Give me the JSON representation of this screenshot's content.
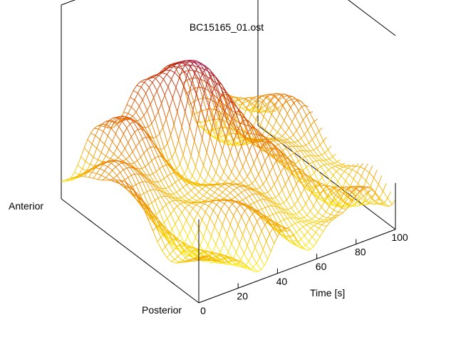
{
  "chart_data": {
    "type": "surface",
    "style": "wireframe-mesh",
    "title": "BC15165_01.ost",
    "x_axis": {
      "label": "Time [s]",
      "range": [
        0,
        100
      ],
      "ticks": [
        "0",
        "20",
        "40",
        "60",
        "80",
        "100"
      ]
    },
    "y_axis": {
      "label_low": "Anterior",
      "label_high": "Posterior",
      "range": [
        0,
        1
      ]
    },
    "z_axis": {
      "label": "",
      "tick_labels_shown": false
    },
    "colormap": {
      "description": "low values yellow, through orange and red, to purple at high values",
      "stops": [
        "#ffee00",
        "#f4a200",
        "#e05a00",
        "#b52010",
        "#8e00c8"
      ]
    },
    "grid": false,
    "legend": "none"
  }
}
